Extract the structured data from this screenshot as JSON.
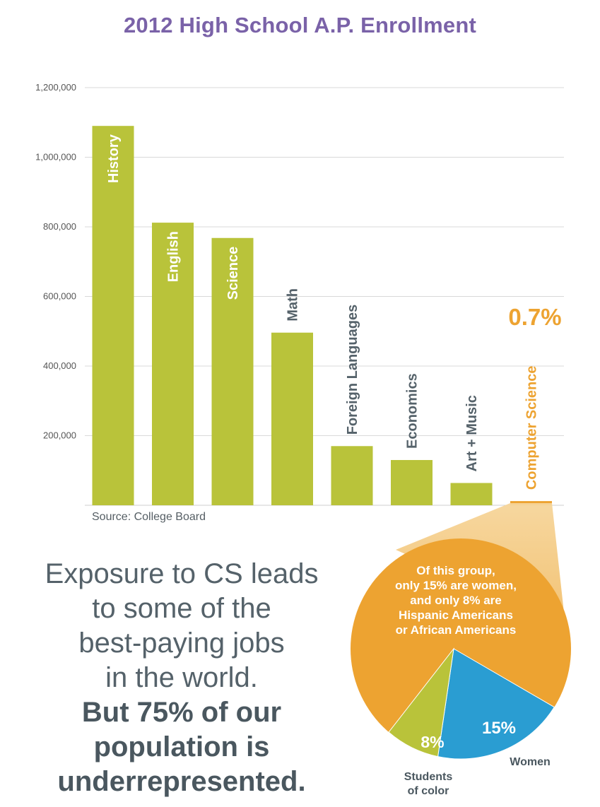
{
  "title": "2012 High School A.P. Enrollment",
  "source": "Source: College Board",
  "highlight_value": "0.7%",
  "colors": {
    "title": "#7a62a8",
    "bar": "#b9c33a",
    "highlight": "#eda331",
    "women": "#2a9dd2",
    "students_of_color": "#b9c33a",
    "text": "#55626a"
  },
  "chart_data": {
    "type": "bar",
    "title": "2012 High School A.P. Enrollment",
    "categories": [
      "History",
      "English",
      "Science",
      "Math",
      "Foreign Languages",
      "Economics",
      "Art + Music",
      "Computer Science"
    ],
    "values": [
      1090000,
      812000,
      768000,
      496000,
      170000,
      130000,
      64000,
      12000
    ],
    "ylim": [
      0,
      1200000
    ],
    "yticks": [
      "200,000",
      "400,000",
      "600,000",
      "800,000",
      "1,000,000",
      "1,200,000"
    ],
    "ytick_values": [
      200000,
      400000,
      600000,
      800000,
      1000000,
      1200000
    ],
    "highlight_category": "Computer Science",
    "grid": true
  },
  "pie": {
    "caption": [
      "Of this group,",
      "only 15% are women,",
      "and only 8% are",
      "Hispanic Americans",
      "or African Americans"
    ],
    "slices": [
      {
        "label": "15%",
        "name": "Women",
        "value": 15
      },
      {
        "label": "8%",
        "name": "Students of color",
        "value": 8
      }
    ],
    "women_label": "Women",
    "students_label_lines": [
      "Students",
      "of color"
    ]
  },
  "tagline": {
    "lines": [
      "Exposure to CS leads",
      "to some of the",
      "best-paying jobs",
      "in the world."
    ],
    "bold_lines": [
      "But 75% of our",
      "population is",
      "underrepresented."
    ]
  }
}
